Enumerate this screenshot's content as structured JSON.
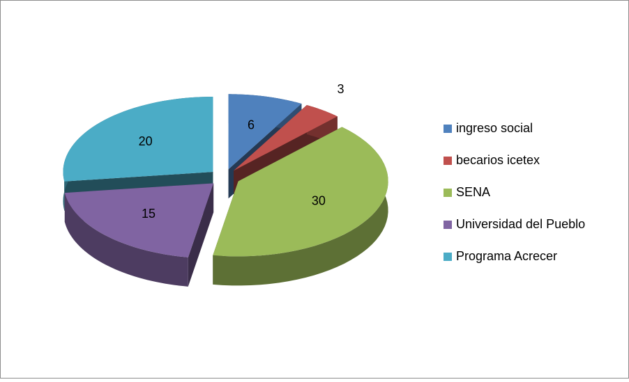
{
  "chart_data": {
    "type": "pie",
    "categories": [
      "ingreso social",
      "becarios icetex",
      "SENA",
      "Universidad del Pueblo",
      "Programa Acrecer"
    ],
    "values": [
      6,
      3,
      30,
      15,
      20
    ],
    "colors": [
      "#4f81bd",
      "#c0504d",
      "#9bbb59",
      "#8064a2",
      "#4bacc6"
    ],
    "legend": "right"
  }
}
